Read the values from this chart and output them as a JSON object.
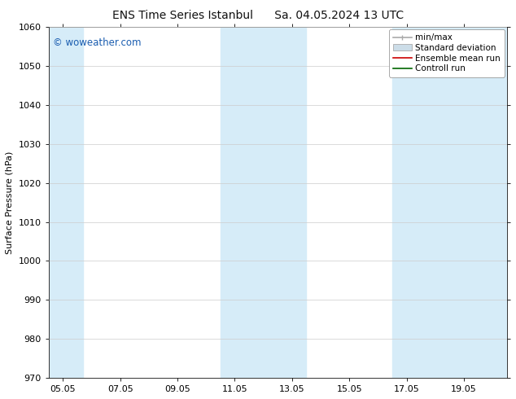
{
  "title": "ENS Time Series Istanbul      Sa. 04.05.2024 13 UTC",
  "ylabel": "Surface Pressure (hPa)",
  "ylim": [
    970,
    1060
  ],
  "yticks": [
    970,
    980,
    990,
    1000,
    1010,
    1020,
    1030,
    1040,
    1050,
    1060
  ],
  "xtick_labels": [
    "05.05",
    "07.05",
    "09.05",
    "11.05",
    "13.05",
    "15.05",
    "17.05",
    "19.05"
  ],
  "xtick_positions": [
    0.5,
    2.5,
    4.5,
    6.5,
    8.5,
    10.5,
    12.5,
    14.5
  ],
  "xlim": [
    0,
    16
  ],
  "shade_bands": [
    {
      "x_start": 0.0,
      "x_end": 1.2
    },
    {
      "x_start": 6.0,
      "x_end": 9.0
    },
    {
      "x_start": 12.0,
      "x_end": 16.0
    }
  ],
  "shade_color": "#d6ecf8",
  "watermark_text": "© woweather.com",
  "watermark_color": "#1a5db0",
  "legend_labels": [
    "min/max",
    "Standard deviation",
    "Ensemble mean run",
    "Controll run"
  ],
  "bg_color": "#ffffff",
  "font_size_title": 10,
  "font_size_axis_label": 8,
  "font_size_ticks": 8,
  "font_size_legend": 7.5,
  "font_size_watermark": 8.5
}
